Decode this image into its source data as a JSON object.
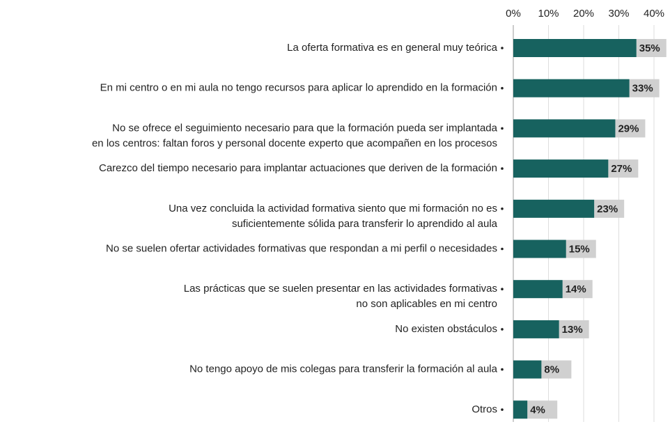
{
  "chart_data": {
    "type": "bar",
    "orientation": "horizontal",
    "categories": [
      "La oferta formativa es en general muy teórica",
      "En mi centro o en mi aula no tengo recursos para aplicar lo aprendido en la formación",
      "No se ofrece el seguimiento necesario para que la formación pueda ser implantada\nen los centros: faltan foros y personal docente experto que acompañen en los procesos",
      "Carezco del tiempo necesario para implantar actuaciones que deriven de la formación",
      "Una vez concluida la actividad formativa siento que mi formación no es\nsuficientemente sólida para transferir lo aprendido al aula",
      "No se suelen ofertar actividades formativas que respondan a mi perfil o necesidades",
      "Las prácticas que se suelen presentar en las actividades formativas\nno son aplicables en mi centro",
      "No existen obstáculos",
      "No tengo apoyo de mis colegas para transferir la formación al aula",
      "Otros"
    ],
    "values": [
      35,
      33,
      29,
      27,
      23,
      15,
      14,
      13,
      8,
      4
    ],
    "value_labels": [
      "35%",
      "33%",
      "29%",
      "27%",
      "23%",
      "15%",
      "14%",
      "13%",
      "8%",
      "4%"
    ],
    "color": "#17625f",
    "xlim": [
      0,
      40
    ],
    "xticks": [
      {
        "value": 0,
        "label": "0%"
      },
      {
        "value": 10,
        "label": "10%"
      },
      {
        "value": 20,
        "label": "20%"
      },
      {
        "value": 30,
        "label": "30%"
      },
      {
        "value": 40,
        "label": "40%"
      }
    ],
    "grid": true
  }
}
